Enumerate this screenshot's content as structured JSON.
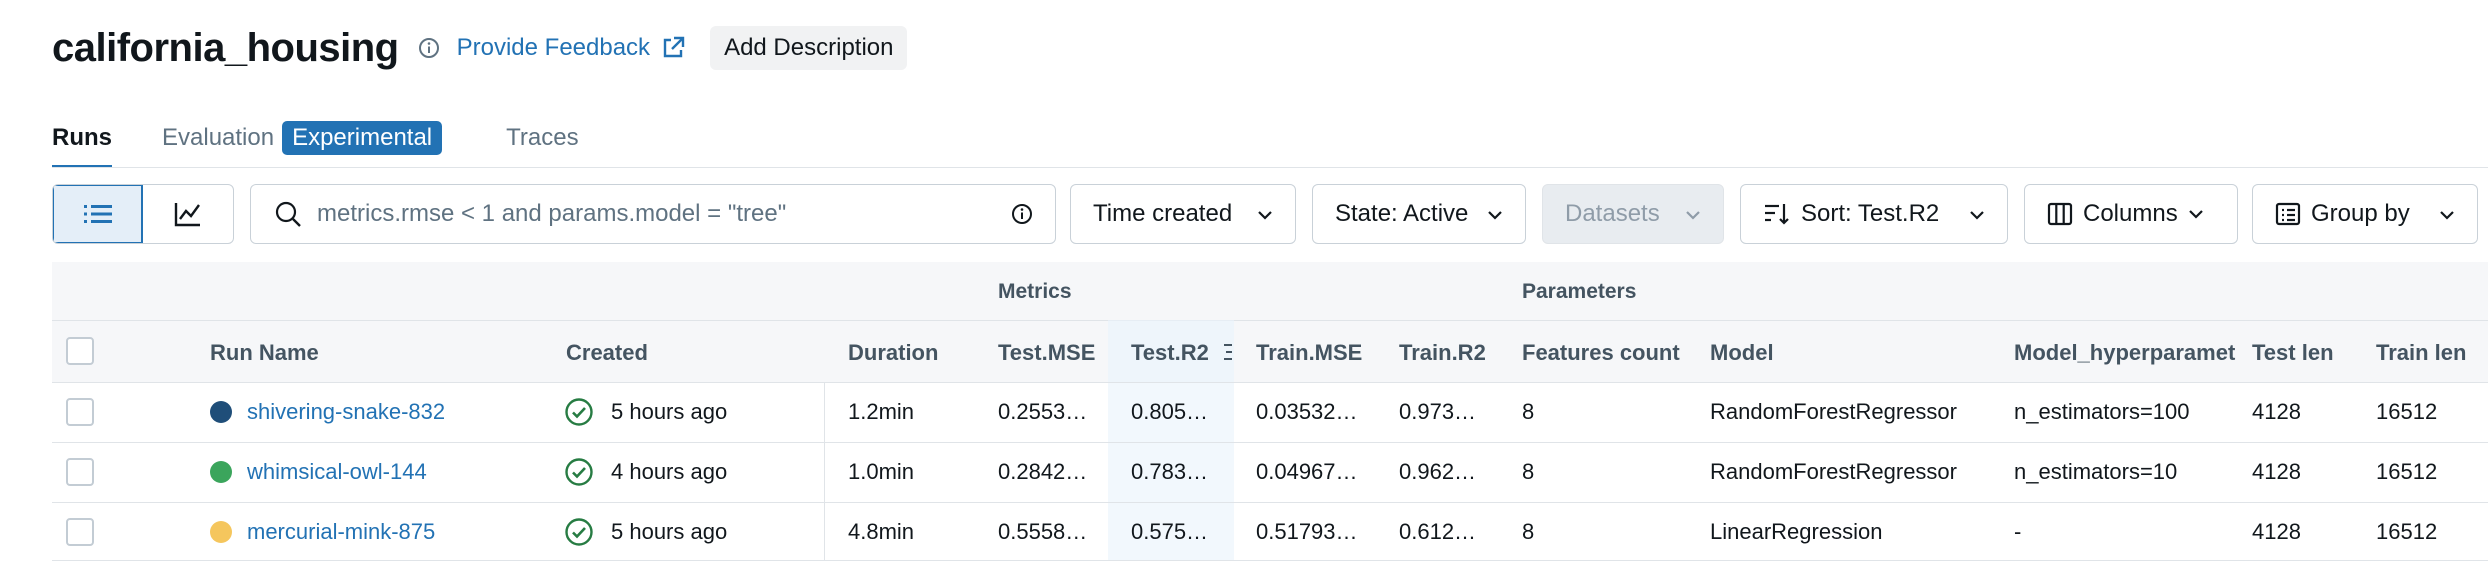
{
  "header": {
    "title": "california_housing",
    "feedback_label": "Provide Feedback",
    "add_description_label": "Add Description"
  },
  "tabs": {
    "runs": "Runs",
    "evaluation": "Evaluation",
    "experimental_badge": "Experimental",
    "traces": "Traces"
  },
  "toolbar": {
    "search_placeholder": "metrics.rmse < 1 and params.model = \"tree\"",
    "time_created": "Time created",
    "state": "State: Active",
    "datasets": "Datasets",
    "sort": "Sort: Test.R2",
    "columns": "Columns",
    "group_by": "Group by"
  },
  "table": {
    "groups": {
      "metrics": "Metrics",
      "parameters": "Parameters"
    },
    "columns": {
      "run_name": "Run Name",
      "created": "Created",
      "duration": "Duration",
      "test_mse": "Test.MSE",
      "test_r2": "Test.R2",
      "train_mse": "Train.MSE",
      "train_r2": "Train.R2",
      "features_count": "Features count",
      "model": "Model",
      "model_hyperparam": "Model_hyperparamet",
      "test_len": "Test len",
      "train_len": "Train len"
    },
    "rows": [
      {
        "color": "#1f4e79",
        "run_name": "shivering-snake-832",
        "created": "5 hours ago",
        "duration": "1.2min",
        "test_mse": "0.2553…",
        "test_r2": "0.805…",
        "train_mse": "0.03532…",
        "train_r2": "0.973…",
        "features_count": "8",
        "model": "RandomForestRegressor",
        "model_hyperparam": "n_estimators=100",
        "test_len": "4128",
        "train_len": "16512"
      },
      {
        "color": "#3ba55c",
        "run_name": "whimsical-owl-144",
        "created": "4 hours ago",
        "duration": "1.0min",
        "test_mse": "0.2842…",
        "test_r2": "0.783…",
        "train_mse": "0.04967…",
        "train_r2": "0.962…",
        "features_count": "8",
        "model": "RandomForestRegressor",
        "model_hyperparam": "n_estimators=10",
        "test_len": "4128",
        "train_len": "16512"
      },
      {
        "color": "#f5c65d",
        "run_name": "mercurial-mink-875",
        "created": "5 hours ago",
        "duration": "4.8min",
        "test_mse": "0.5558…",
        "test_r2": "0.575…",
        "train_mse": "0.51793…",
        "train_r2": "0.612…",
        "features_count": "8",
        "model": "LinearRegression",
        "model_hyperparam": "-",
        "test_len": "4128",
        "train_len": "16512"
      }
    ]
  },
  "colors": {
    "accent": "#2272b4",
    "success": "#277c43"
  }
}
